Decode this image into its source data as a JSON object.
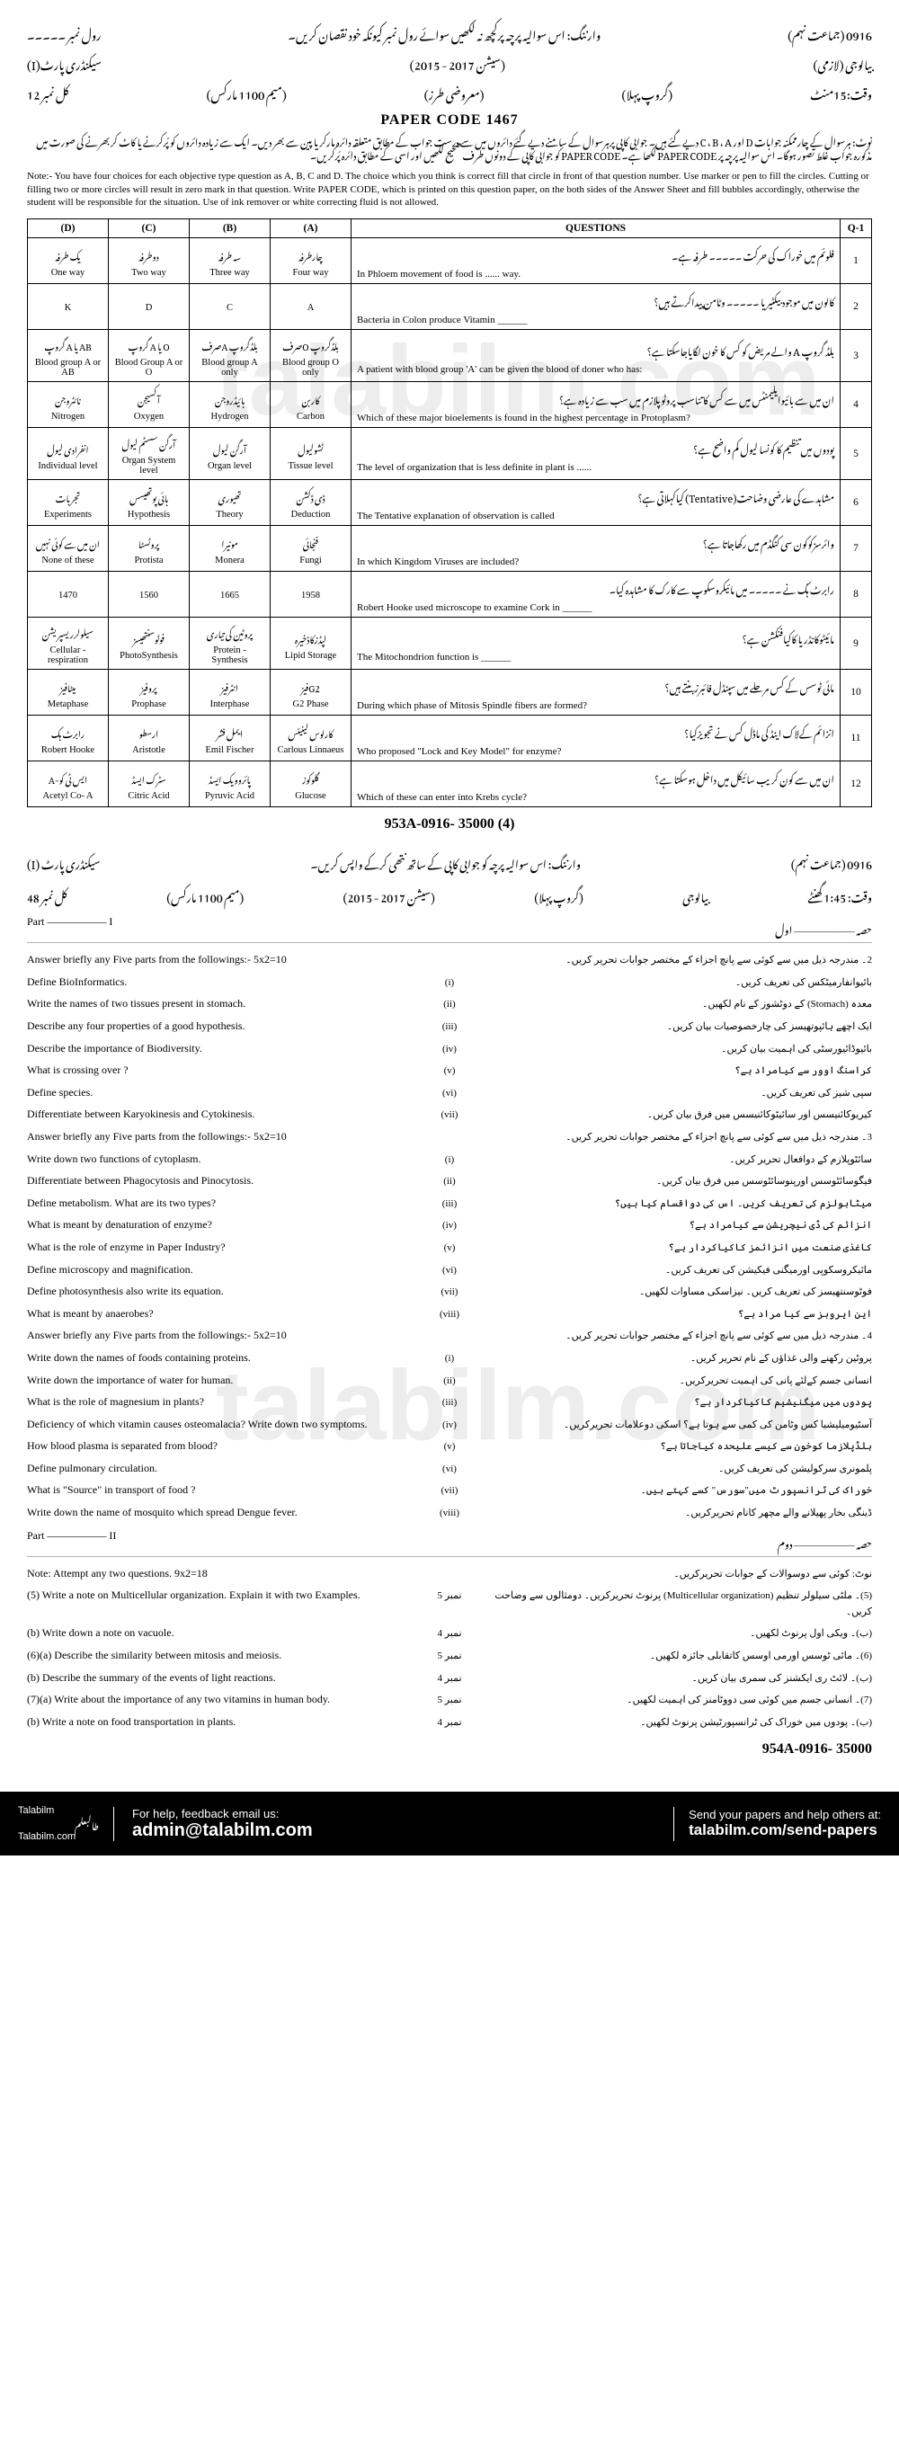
{
  "watermark": "talabilm.com",
  "header": {
    "roll_label_ur": "رول نمبر ۔۔۔۔۔",
    "instruction_ur": "وارننگ: اس سوالیہ پرچہ پرکچھ نہ لکھیں سوائے رول نمبر کیونکہ خود نقصان کریں۔",
    "code_ur": "0916 (جماعت نہم)",
    "subject_ur": "بیالوجی (لازمی)",
    "part_ur": "سیکنڈری پارٹ(I)",
    "session_ur": "(سیشن 2017 - 2015)",
    "group_ur": "(گروپ پہلا)",
    "time_ur": "وقت:15منٹ",
    "marks_ur": "(معروضی طرز)",
    "max_ur": "(میم 1100 مارکس)",
    "total_ur": "کل نمبر 12",
    "paper_code": "PAPER CODE 1467",
    "note_ur": "نوٹ: ہرسوال کے چارممکنہ جوابات D اور C ، B ، A دیے گئے ہیں۔ جوابی کاپی پرہرسوال کے سامنے دیے گئے دائروں میں سے درست جواب کے مطابق متعلقہ دائرہ مارکریا پین سے بھر دیں۔ ایک سے زیادہ دائروں کو پُرکرنے یا کاٹ کربھرنے کی صورت میں مذکورہ جواب غلط تصور ہوگا۔ اس سوالیہ پرچہ پر PAPER CODE لکھا ہے۔ PAPER CODE کو جوابی کاپی کے دونوں طرف صحیح لکھیں اور اسی کے مطابق دائرہ پُرکریں۔",
    "note_en": "Note:- You have four choices for each objective type question as A, B, C and D. The choice which you think is correct fill that circle in front of that question number. Use marker or pen to fill the circles. Cutting or filling two or more circles will result in zero mark in that question. Write PAPER CODE, which is printed on this question paper, on the both sides of the Answer Sheet and fill bubbles accordingly, otherwise the student will be responsible for the situation. Use of ink remover or white correcting fluid is not allowed."
  },
  "table": {
    "headers": {
      "d": "(D)",
      "c": "(C)",
      "b": "(B)",
      "a": "(A)",
      "q": "QUESTIONS",
      "n": "Q-1"
    },
    "rows": [
      {
        "n": "1",
        "q_ur": "فلوئم میں خوراک کی حرکت ۔۔۔۔۔ طرفہ ہے۔",
        "q_en": "In Phloem movement of food is ...... way.",
        "a": {
          "ur": "چارطرفہ",
          "en": "Four way"
        },
        "b": {
          "ur": "سہ طرفہ",
          "en": "Three way"
        },
        "c": {
          "ur": "دوطرفہ",
          "en": "Two way"
        },
        "d": {
          "ur": "یک طرفہ",
          "en": "One way"
        }
      },
      {
        "n": "2",
        "q_ur": "کالون میں موجود بیکٹیریا ۔۔۔۔۔ وٹامن پیداکرتے ہیں؟",
        "q_en": "Bacteria in Colon produce Vitamin ______",
        "a": {
          "ur": "",
          "en": "A"
        },
        "b": {
          "ur": "",
          "en": "C"
        },
        "c": {
          "ur": "",
          "en": "D"
        },
        "d": {
          "ur": "",
          "en": "K"
        }
      },
      {
        "n": "3",
        "q_ur": "بلڈ گروپ A والے مریض کو کس کا خون لگایاجاسکتا ہے؟",
        "q_en": "A patient with blood group 'A' can be given the blood of doner who has:",
        "a": {
          "ur": "بلڈگروپ Oصرف",
          "en": "Blood group O only"
        },
        "b": {
          "ur": "بلڈگروپ Aصرف",
          "en": "Blood group A only"
        },
        "c": {
          "ur": "O یا A گروپ",
          "en": "Blood Group A or O"
        },
        "d": {
          "ur": "AB یا A گروپ",
          "en": "Blood group A or AB"
        }
      },
      {
        "n": "4",
        "q_ur": "ان میں سے بائیوایلیمنٹس میں سے کس کا تناسب پروٹوپلازم میں سب سے زیادہ ہے؟",
        "q_en": "Which of these major bioelements is found in the highest percentage in Protoplasm?",
        "a": {
          "ur": "کاربن",
          "en": "Carbon"
        },
        "b": {
          "ur": "ہائیڈروجن",
          "en": "Hydrogen"
        },
        "c": {
          "ur": "آکسیجن",
          "en": "Oxygen"
        },
        "d": {
          "ur": "نائٹروجن",
          "en": "Nitrogen"
        }
      },
      {
        "n": "5",
        "q_ur": "پودوں میں تنظیم کا کونسا لیول کم واضح ہے؟",
        "q_en": "The level of organization that is less definite in plant is ......",
        "a": {
          "ur": "ٹشولیول",
          "en": "Tissue level"
        },
        "b": {
          "ur": "آرگن لیول",
          "en": "Organ level"
        },
        "c": {
          "ur": "آرگن سسٹم لیول",
          "en": "Organ System level"
        },
        "d": {
          "ur": "انفرادی لیول",
          "en": "Individual level"
        }
      },
      {
        "n": "6",
        "q_ur": "مشاہدے کی عارضی وضاحت(Tentative) کیاکہلاتی ہے؟",
        "q_en": "The Tentative explanation of observation is called",
        "a": {
          "ur": "ڈی ڈکشن",
          "en": "Deduction"
        },
        "b": {
          "ur": "تھیوری",
          "en": "Theory"
        },
        "c": {
          "ur": "ہائی پوتھیسس",
          "en": "Hypothesis"
        },
        "d": {
          "ur": "تجربات",
          "en": "Experiments"
        }
      },
      {
        "n": "7",
        "q_ur": "وائرسزکوکون سی کنگڈم میں رکھاجاتا ہے؟",
        "q_en": "In which Kingdom Viruses are included?",
        "a": {
          "ur": "فنجائی",
          "en": "Fungi"
        },
        "b": {
          "ur": "مونیرا",
          "en": "Monera"
        },
        "c": {
          "ur": "پروٹسٹا",
          "en": "Protista"
        },
        "d": {
          "ur": "ان میں سے کوئی نہیں",
          "en": "None of these"
        }
      },
      {
        "n": "8",
        "q_ur": "رابرٹ ہُک نے ۔۔۔۔۔ میں مائیکروسکوپ سے کارک کا مشاہدہ کیا۔",
        "q_en": "Robert Hooke used microscope to examine Cork in ______",
        "a": {
          "ur": "",
          "en": "1958"
        },
        "b": {
          "ur": "",
          "en": "1665"
        },
        "c": {
          "ur": "",
          "en": "1560"
        },
        "d": {
          "ur": "",
          "en": "1470"
        }
      },
      {
        "n": "9",
        "q_ur": "مائیٹوکانڈریا کاکیافنکشن ہے؟",
        "q_en": "The Mitochondrion function is ______",
        "a": {
          "ur": "لپڈزکاذخیرہ",
          "en": "Lipid Storage"
        },
        "b": {
          "ur": "پروٹین کی تیاری",
          "en": "Protein - Synthesis"
        },
        "c": {
          "ur": "فوٹوسنتھیسز",
          "en": "PhotoSynthesis"
        },
        "d": {
          "ur": "سیلولرریسپریشن",
          "en": "Cellular - respiration"
        }
      },
      {
        "n": "10",
        "q_ur": "مائی ٹوسس کے کس مرحلے میں سپنڈل فائبرزبنتے ہیں؟",
        "q_en": "During which phase of Mitosis Spindle fibers are formed?",
        "a": {
          "ur": "G2فیز",
          "en": "G2 Phase"
        },
        "b": {
          "ur": "انٹرفیز",
          "en": "Interphase"
        },
        "c": {
          "ur": "پروفیز",
          "en": "Prophase"
        },
        "d": {
          "ur": "میٹافیز",
          "en": "Metaphase"
        }
      },
      {
        "n": "11",
        "q_ur": "انزائم کےلاک اینڈ کی ماڈل کس نے تجویزکیا؟",
        "q_en": "Who proposed \"Lock and Key Model\" for enzyme?",
        "a": {
          "ur": "کارلوس لینیئس",
          "en": "Carlous Linnaeus"
        },
        "b": {
          "ur": "ایمل فشر",
          "en": "Emil Fischer"
        },
        "c": {
          "ur": "ارسطو",
          "en": "Aristotle"
        },
        "d": {
          "ur": "رابرٹ ہک",
          "en": "Robert Hooke"
        }
      },
      {
        "n": "12",
        "q_ur": "ان میں سے کون کریب سائیکل میں داخل ہوسکتا ہے؟",
        "q_en": "Which of these can enter into Krebs cycle?",
        "a": {
          "ur": "گلوکوز",
          "en": "Glucose"
        },
        "b": {
          "ur": "پائروویک ایسڈ",
          "en": "Pyruvic Acid"
        },
        "c": {
          "ur": "سٹرک ایسڈ",
          "en": "Citric Acid"
        },
        "d": {
          "ur": "ایس ٹی کو-A",
          "en": "Acetyl Co- A"
        }
      }
    ]
  },
  "footer1": "953A-0916- 35000   (4)",
  "part2_header": {
    "line1_ur": "وارننگ: اس سوالیہ پرچہ کو جوابی کاپی کے ساتھ نتھی کرکے واپس کریں۔",
    "code_ur": "0916 (جماعت نہم)",
    "part_ur": "سیکنڈری پارٹ (I)",
    "subj_ur": "بیالوجی",
    "sess_ur": "(سیشن 2017 - 2015)",
    "group_ur": "(گروپ پہلا)",
    "time_ur": "وقت: 1:45 گھنٹے",
    "marks_ur": "(میم 1100 مارکس)",
    "total_ur": "کل نمبر 48",
    "part_en": "Part ––––––––––– I",
    "part_ur2": "حصہ ––––––––––– اول"
  },
  "sec2_intro": {
    "en": "Answer briefly any Five parts from the followings:-   5x2=10",
    "ur": "2۔ مندرجہ ذیل میں سے کوئی سے پانچ اجزاء کے مختصر جوابات تحریر کریں۔"
  },
  "q2": [
    {
      "en": "Define BioInformatics.",
      "n": "(i)",
      "ur": "بائیوانفارمیٹکس کی تعریف کریں۔"
    },
    {
      "en": "Write the names of two tissues present in stomach.",
      "n": "(ii)",
      "ur": "معدہ (Stomach) کے دوٹشوز کے نام لکھیں۔"
    },
    {
      "en": "Describe any four properties of a good hypothesis.",
      "n": "(iii)",
      "ur": "ایک اچھے ہائپوتھیسز کی چارخصوصیات بیان کریں۔"
    },
    {
      "en": "Describe the importance of Biodiversity.",
      "n": "(iv)",
      "ur": "بائیوڈائیورسٹی کی اہمیت بیان کریں۔"
    },
    {
      "en": "What is crossing over ?",
      "n": "(v)",
      "ur": "کراسنگ اوور سے کیامراد ہے؟"
    },
    {
      "en": "Define species.",
      "n": "(vi)",
      "ur": "سپی شیز کی تعریف کریں۔"
    },
    {
      "en": "Differentiate between Karyokinesis and Cytokinesis.",
      "n": "(vii)",
      "ur": "کیریوکائنیسس اور سائیٹوکائنیسس میں فرق بیان کریں۔"
    }
  ],
  "sec3_intro": {
    "en": "Answer briefly any Five parts from the followings:-   5x2=10",
    "ur": "3۔ مندرجہ ذیل میں سے کوئی سے پانچ اجزاء کے مختصر جوابات تحریر کریں۔"
  },
  "q3": [
    {
      "en": "Write down two functions of cytoplasm.",
      "n": "(i)",
      "ur": "سائٹوپلازم کے دوافعال تحریر کریں۔"
    },
    {
      "en": "Differentiate between Phagocytosis and Pinocytosis.",
      "n": "(ii)",
      "ur": "فیگوسائٹوسس اورپنوسائٹوسس میں فرق بیان کریں۔"
    },
    {
      "en": "Define metabolism. What are its two types?",
      "n": "(iii)",
      "ur": "میٹابولزم کی تعریف کریں۔ اس کی دواقسام کیا ہیں؟"
    },
    {
      "en": "What is meant by denaturation of enzyme?",
      "n": "(iv)",
      "ur": "انزائم کی ڈی نیچریشن سے کیامراد ہے؟"
    },
    {
      "en": "What is the role of enzyme in Paper Industry?",
      "n": "(v)",
      "ur": "کاغذی صنعت میں انزائمز کاکیاکردار ہے؟"
    },
    {
      "en": "Define microscopy and magnification.",
      "n": "(vi)",
      "ur": "مائیکروسکوپی اورمیگنی فیکیشن کی تعریف کریں۔"
    },
    {
      "en": "Define photosynthesis also write its equation.",
      "n": "(vii)",
      "ur": "فوٹوسنتھیسز کی تعریف کریں۔ نیزاسکی مساوات لکھیں۔"
    },
    {
      "en": "What is meant by anaerobes?",
      "n": "(viii)",
      "ur": "این ایروبز سے کیا مراد ہے؟"
    }
  ],
  "sec4_intro": {
    "en": "Answer briefly any Five parts from the followings:-   5x2=10",
    "ur": "4۔ مندرجہ ذیل میں سے کوئی سے پانچ اجزاء کے مختصر جوابات تحریر کریں۔"
  },
  "q4": [
    {
      "en": "Write down the names of foods containing proteins.",
      "n": "(i)",
      "ur": "پروٹین رکھنے والی غذاؤں کے نام تحریر کریں۔"
    },
    {
      "en": "Write down the importance of water for human.",
      "n": "(ii)",
      "ur": "انسانی جسم کےلئے پانی کی اہمیت تحریرکریں۔"
    },
    {
      "en": "What is the role of magnesium in plants?",
      "n": "(iii)",
      "ur": "پودوں میں میگنیشیم کاکیاکردار ہے؟"
    },
    {
      "en": "Deficiency of which vitamin causes osteomalacia? Write down two symptoms.",
      "n": "(iv)",
      "ur": "آسٹیومیلیشیا کس وٹامن کی کمی سے ہوتا ہے؟ اسکی دوعلامات تحریرکریں۔"
    },
    {
      "en": "How blood plasma is separated from blood?",
      "n": "(v)",
      "ur": "بلڈپلازما کوخون سے کیسے علیحدہ کیاجاتا ہے؟"
    },
    {
      "en": "Define pulmonary circulation.",
      "n": "(vi)",
      "ur": "پلمونری سرکولیشن کی تعریف کریں۔"
    },
    {
      "en": "What is \"Source\" in transport of food ?",
      "n": "(vii)",
      "ur": "خوراک کی ٹرانسپورٹ میں\"سورس\" کسے کہتے ہیں۔"
    },
    {
      "en": "Write down the name of mosquito which spread Dengue fever.",
      "n": "(viii)",
      "ur": "ڈینگی بخار پھیلانے والے مچھر کانام تحریرکریں۔"
    }
  ],
  "part2_label": {
    "en": "Part ––––––––––– II",
    "ur": "حصہ ––––––––––– دوم"
  },
  "partII_note": {
    "en": "Note: Attempt any two questions.                9x2=18",
    "ur": "نوٹ: کوئی سے دوسوالات کے جوابات تحریرکریں۔"
  },
  "q5": [
    {
      "en": "(5) Write a note on Multicellular organization. Explain it with two Examples.",
      "n": "نمبر 5",
      "ur": "(5)۔ ملٹی سیلولر تنظیم (Multicellular organization) پرنوٹ تحریرکریں۔ دومثالوں سے وضاحت کریں۔"
    },
    {
      "en": "(b) Write down a note on vacuole.",
      "n": "نمبر 4",
      "ur": "(ب)۔ ویکی اول پرنوٹ لکھیں۔"
    },
    {
      "en": "(6)(a) Describe the similarity between mitosis and meiosis.",
      "n": "نمبر 5",
      "ur": "(6)۔ مائی ٹوسس اورمی اوسس کاتقابلی جائزہ لکھیں۔"
    },
    {
      "en": "(b) Describe the summary of the events of light reactions.",
      "n": "نمبر 4",
      "ur": "(ب)۔ لائٹ ری ایکشنز کی سمری بیان کریں۔"
    },
    {
      "en": "(7)(a) Write about the importance of any two vitamins in human body.",
      "n": "نمبر 5",
      "ur": "(7)۔ انسانی جسم میں کوئی سی دووٹامنز کی اہمیت لکھیں۔"
    },
    {
      "en": "(b) Write a note on food transportation in plants.",
      "n": "نمبر 4",
      "ur": "(ب)۔ پودوں میں خوراک کی ٹرانسپورٹیشن پرنوٹ لکھیں۔"
    }
  ],
  "footer2": "954A-0916- 35000",
  "bottombar": {
    "logo1": "Talabilm",
    "logo2": "طالبعلم",
    "logo3": "Talabilm.com",
    "mid1": "For help, feedback email us:",
    "mid2": "admin@talabilm.com",
    "r1": "Send your papers and help others at:",
    "r2": "talabilm.com/send-papers"
  }
}
